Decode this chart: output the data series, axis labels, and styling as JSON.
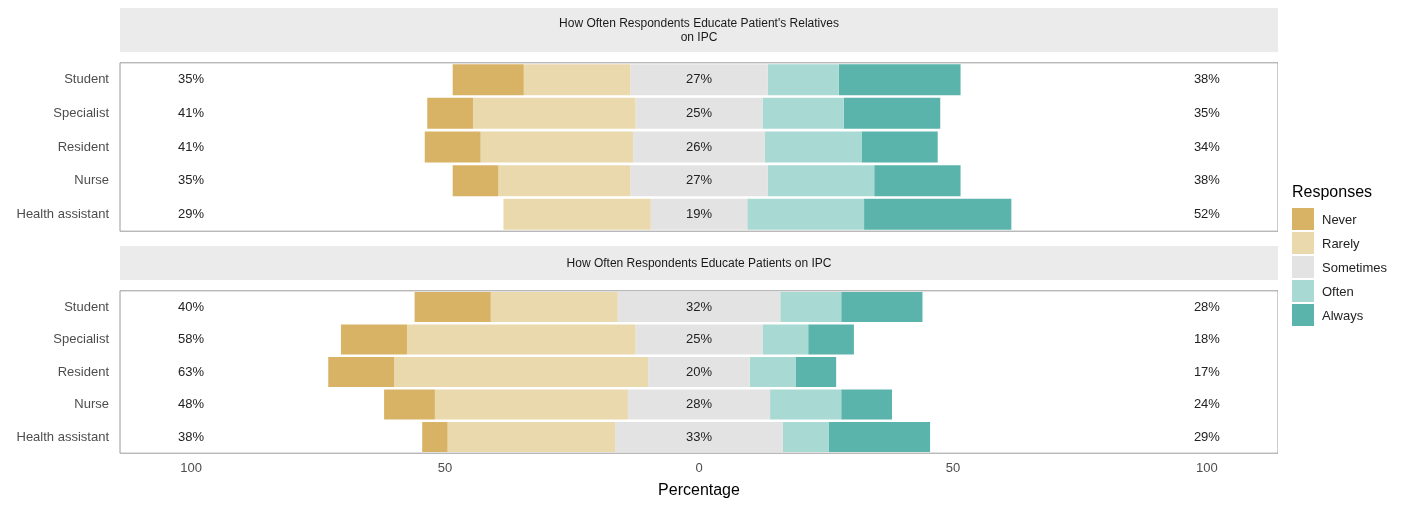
{
  "chart_data": [
    {
      "type": "bar",
      "orientation": "horizontal",
      "title": "How Often Respondents Educate Patient's Relatives\non IPC",
      "categories": [
        "Student",
        "Specialist",
        "Resident",
        "Nurse",
        "Health assistant"
      ],
      "legend": "right",
      "legend_title": "Responses",
      "tick_labels": "y",
      "xlim": [
        -114,
        114
      ],
      "series": [
        {
          "name": "Never",
          "color": "#d8b365",
          "values": [
            14,
            9,
            11,
            9,
            null
          ],
          "base": [
            -48.5,
            -53.5,
            -54,
            -48.5,
            null
          ]
        },
        {
          "name": "Rarely",
          "color": "#ebd9ae",
          "values": [
            21,
            32,
            30,
            26,
            29
          ],
          "base": [
            -34.5,
            -44.5,
            -43,
            -39.5,
            -38.5
          ]
        },
        {
          "name": "Sometimes",
          "color": "#e3e3e3",
          "values": [
            27,
            25,
            26,
            27,
            19
          ],
          "base": [
            -13.5,
            -12.5,
            -13,
            -13.5,
            -9.5
          ]
        },
        {
          "name": "Often",
          "color": "#a9d9d3",
          "values": [
            14,
            16,
            19,
            21,
            23
          ],
          "base": [
            13.5,
            12.5,
            13,
            13.5,
            9.5
          ]
        },
        {
          "name": "Always",
          "color": "#5ab4ac",
          "values": [
            24,
            19,
            15,
            17,
            29
          ],
          "base": [
            27.5,
            28.5,
            32,
            34.5,
            32.5
          ]
        }
      ],
      "annotations": [
        "35%",
        "27%",
        "38%",
        "41%",
        "25%",
        "35%",
        "41%",
        "26%",
        "34%",
        "35%",
        "27%",
        "38%",
        "29%",
        "19%",
        "52%"
      ]
    },
    {
      "type": "bar",
      "orientation": "horizontal",
      "title": "How Often Respondents Educate Patients on IPC",
      "categories": [
        "Student",
        "Specialist",
        "Resident",
        "Nurse",
        "Health assistant"
      ],
      "legend": "right",
      "xlabel": "Percentage",
      "xlim": [
        -114,
        114
      ],
      "xticks": [
        {
          "value": -100,
          "label": "100"
        },
        {
          "value": -50,
          "label": "50"
        },
        0,
        50,
        100
      ],
      "series": [
        {
          "name": "Never",
          "color": "#d8b365",
          "values": [
            15,
            13,
            13,
            10,
            5
          ],
          "base": [
            -56,
            -70.5,
            -73,
            -62,
            -54.5
          ]
        },
        {
          "name": "Rarely",
          "color": "#ebd9ae",
          "values": [
            25,
            45,
            50,
            38,
            33
          ],
          "base": [
            -41,
            -57.5,
            -60,
            -52,
            -49.5
          ]
        },
        {
          "name": "Sometimes",
          "color": "#e3e3e3",
          "values": [
            32,
            25,
            20,
            28,
            33
          ],
          "base": [
            -16,
            -12.5,
            -10,
            -14,
            -16.5
          ]
        },
        {
          "name": "Often",
          "color": "#a9d9d3",
          "values": [
            12,
            9,
            9,
            14,
            9
          ],
          "base": [
            16,
            12.5,
            10,
            14,
            16.5
          ]
        },
        {
          "name": "Always",
          "color": "#5ab4ac",
          "values": [
            16,
            9,
            8,
            10,
            20
          ],
          "base": [
            28,
            21.5,
            19,
            28,
            25.5
          ]
        }
      ],
      "annotations": [
        "40%",
        "32%",
        "28%",
        "58%",
        "25%",
        "18%",
        "63%",
        "20%",
        "17%",
        "48%",
        "28%",
        "24%",
        "38%",
        "33%",
        "29%"
      ]
    }
  ]
}
